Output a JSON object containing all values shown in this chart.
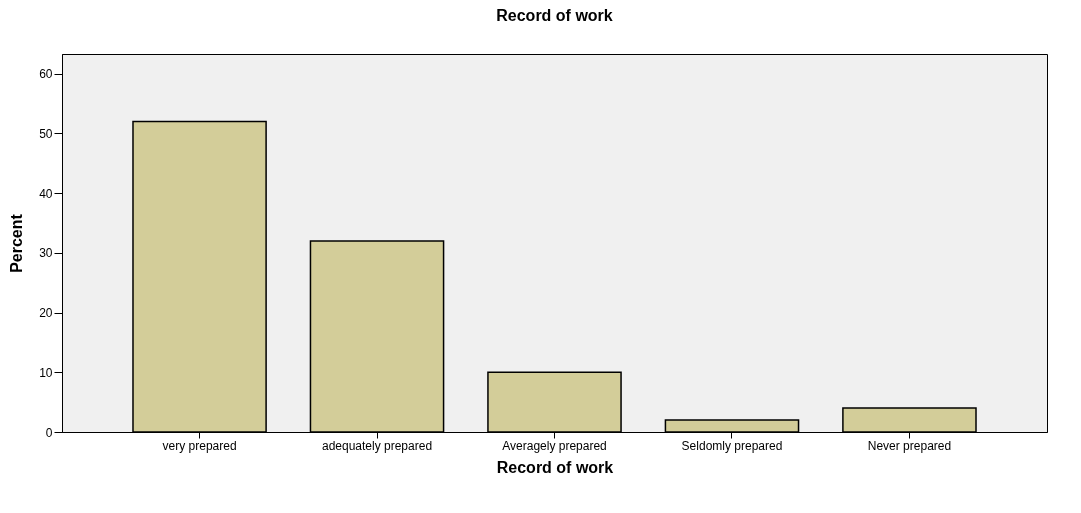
{
  "chart_data": {
    "type": "bar",
    "title": "Record of work",
    "xlabel": "Record of work",
    "ylabel": "Percent",
    "categories": [
      "very prepared",
      "adequately prepared",
      "Averagely prepared",
      "Seldomly prepared",
      "Never prepared"
    ],
    "values": [
      52,
      32,
      10,
      2,
      4
    ],
    "color": "#d3cd99",
    "ylim": [
      0,
      63.3
    ],
    "yticks": [
      0,
      10,
      20,
      30,
      40,
      50,
      60
    ],
    "grid": false
  }
}
